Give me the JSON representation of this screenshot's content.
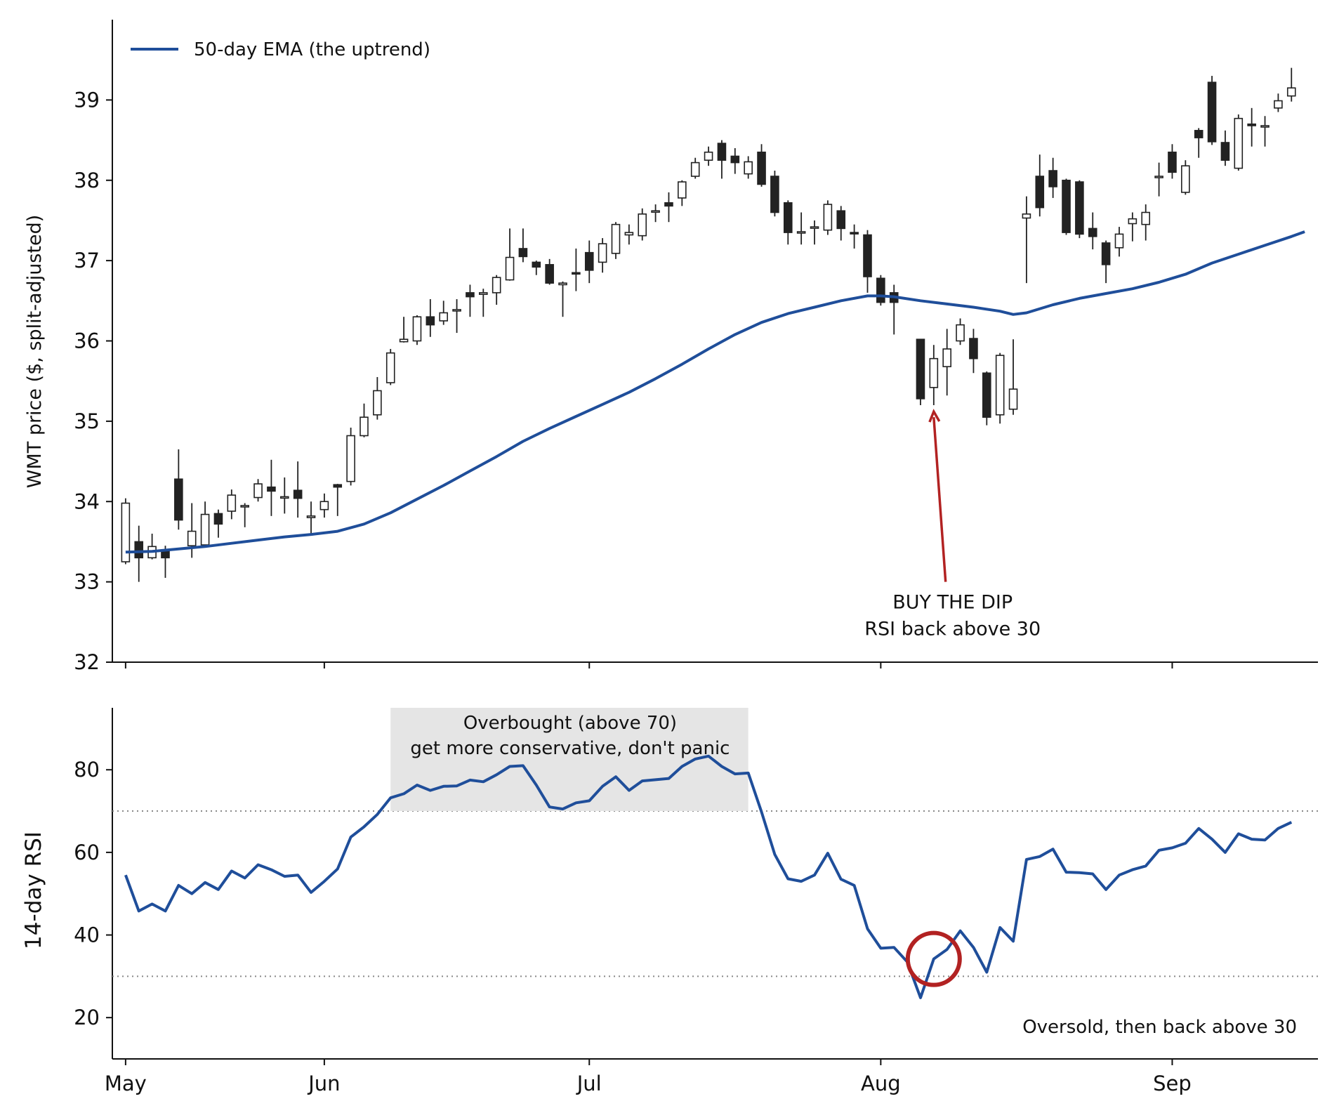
{
  "chart_data": [
    {
      "type": "candlestick",
      "ylabel": "WMT price ($, split-adjusted)",
      "ylim": [
        32,
        40
      ],
      "yticks": [
        32,
        33,
        34,
        35,
        36,
        37,
        38,
        39
      ],
      "xlim": [
        -1,
        90
      ],
      "xticks": [
        {
          "label": "May",
          "day": 0
        },
        {
          "label": "Jun",
          "day": 15
        },
        {
          "label": "Jul",
          "day": 35
        },
        {
          "label": "Aug",
          "day": 57
        },
        {
          "label": "Sep",
          "day": 79
        }
      ],
      "legend": {
        "position": "top-left",
        "entries": [
          "50-day EMA (the uptrend)"
        ]
      },
      "colors": {
        "up_fill": "#ffffff",
        "down_fill": "#222222",
        "edge": "#222222",
        "ema": "#1f4e9a",
        "annotation": "#b22222"
      },
      "candles": [
        [
          0,
          33.25,
          33.98,
          33.22,
          34.04
        ],
        [
          1,
          33.5,
          33.3,
          33.0,
          33.7
        ],
        [
          2,
          33.3,
          33.44,
          33.28,
          33.6
        ],
        [
          3,
          33.4,
          33.3,
          33.05,
          33.45
        ],
        [
          4,
          34.28,
          33.77,
          33.65,
          34.65
        ],
        [
          5,
          33.45,
          33.63,
          33.3,
          33.98
        ],
        [
          6,
          33.46,
          33.84,
          33.45,
          34.0
        ],
        [
          7,
          33.85,
          33.72,
          33.55,
          33.9
        ],
        [
          8,
          33.88,
          34.08,
          33.78,
          34.15
        ],
        [
          9,
          33.94,
          33.95,
          33.68,
          33.98
        ],
        [
          10,
          34.05,
          34.22,
          34.0,
          34.28
        ],
        [
          11,
          34.18,
          34.13,
          33.82,
          34.52
        ],
        [
          12,
          34.05,
          34.06,
          33.85,
          34.3
        ],
        [
          13,
          34.14,
          34.04,
          33.8,
          34.5
        ],
        [
          14,
          33.8,
          33.82,
          33.58,
          34.0
        ],
        [
          15,
          33.9,
          34.0,
          33.8,
          34.1
        ],
        [
          16,
          34.21,
          34.18,
          33.82,
          34.22
        ],
        [
          17,
          34.25,
          34.82,
          34.2,
          34.92
        ],
        [
          18,
          34.82,
          35.05,
          34.8,
          35.22
        ],
        [
          19,
          35.08,
          35.38,
          35.02,
          35.55
        ],
        [
          20,
          35.48,
          35.85,
          35.45,
          35.9
        ],
        [
          21,
          35.99,
          36.02,
          35.98,
          36.3
        ],
        [
          22,
          36.0,
          36.3,
          35.95,
          36.32
        ],
        [
          23,
          36.3,
          36.2,
          36.05,
          36.52
        ],
        [
          24,
          36.25,
          36.35,
          36.2,
          36.5
        ],
        [
          25,
          36.38,
          36.39,
          36.1,
          36.52
        ],
        [
          26,
          36.6,
          36.55,
          36.3,
          36.7
        ],
        [
          27,
          36.58,
          36.6,
          36.3,
          36.65
        ],
        [
          28,
          36.6,
          36.79,
          36.45,
          36.82
        ],
        [
          29,
          36.76,
          37.04,
          36.75,
          37.4
        ],
        [
          30,
          37.15,
          37.05,
          36.98,
          37.4
        ],
        [
          31,
          36.98,
          36.92,
          36.82,
          37.0
        ],
        [
          32,
          36.95,
          36.72,
          36.7,
          37.02
        ],
        [
          33,
          36.7,
          36.72,
          36.3,
          36.74
        ],
        [
          34,
          36.85,
          36.84,
          36.62,
          37.15
        ],
        [
          35,
          37.1,
          36.88,
          36.72,
          37.25
        ],
        [
          36,
          36.98,
          37.21,
          36.85,
          37.28
        ],
        [
          37,
          37.09,
          37.45,
          37.02,
          37.48
        ],
        [
          38,
          37.32,
          37.35,
          37.2,
          37.45
        ],
        [
          39,
          37.31,
          37.58,
          37.25,
          37.65
        ],
        [
          40,
          37.62,
          37.62,
          37.48,
          37.7
        ],
        [
          41,
          37.72,
          37.68,
          37.48,
          37.85
        ],
        [
          42,
          37.78,
          37.98,
          37.68,
          38.0
        ],
        [
          43,
          38.05,
          38.22,
          38.02,
          38.28
        ],
        [
          44,
          38.25,
          38.35,
          38.18,
          38.42
        ],
        [
          45,
          38.46,
          38.25,
          38.02,
          38.5
        ],
        [
          46,
          38.3,
          38.22,
          38.08,
          38.4
        ],
        [
          47,
          38.08,
          38.23,
          38.02,
          38.3
        ],
        [
          48,
          38.35,
          37.95,
          37.92,
          38.45
        ],
        [
          49,
          38.05,
          37.6,
          37.55,
          38.12
        ],
        [
          50,
          37.72,
          37.35,
          37.2,
          37.75
        ],
        [
          51,
          37.35,
          37.36,
          37.2,
          37.6
        ],
        [
          52,
          37.42,
          37.42,
          37.2,
          37.5
        ],
        [
          53,
          37.38,
          37.7,
          37.32,
          37.75
        ],
        [
          54,
          37.62,
          37.4,
          37.25,
          37.68
        ],
        [
          55,
          37.35,
          37.34,
          37.15,
          37.45
        ],
        [
          56,
          37.32,
          36.8,
          36.6,
          37.38
        ],
        [
          57,
          36.78,
          36.48,
          36.44,
          36.82
        ],
        [
          58,
          36.6,
          36.48,
          36.08,
          36.7
        ],
        [
          60,
          36.02,
          35.28,
          35.2,
          36.02
        ],
        [
          61,
          35.42,
          35.78,
          35.2,
          35.95
        ],
        [
          62,
          35.68,
          35.9,
          35.32,
          36.15
        ],
        [
          63,
          36.0,
          36.2,
          35.95,
          36.28
        ],
        [
          64,
          36.03,
          35.78,
          35.6,
          36.15
        ],
        [
          65,
          35.6,
          35.05,
          34.95,
          35.62
        ],
        [
          66,
          35.08,
          35.82,
          34.97,
          35.85
        ],
        [
          67,
          35.15,
          35.4,
          35.08,
          36.02
        ],
        [
          68,
          37.53,
          37.58,
          36.72,
          37.8
        ],
        [
          69,
          38.05,
          37.66,
          37.55,
          38.32
        ],
        [
          70,
          38.12,
          37.92,
          37.78,
          38.28
        ],
        [
          71,
          38.0,
          37.35,
          37.32,
          38.02
        ],
        [
          72,
          37.98,
          37.33,
          37.28,
          38.0
        ],
        [
          73,
          37.4,
          37.3,
          37.14,
          37.6
        ],
        [
          74,
          37.22,
          36.95,
          36.72,
          37.25
        ],
        [
          75,
          37.16,
          37.33,
          37.05,
          37.42
        ],
        [
          76,
          37.46,
          37.52,
          37.24,
          37.6
        ],
        [
          77,
          37.45,
          37.6,
          37.25,
          37.7
        ],
        [
          78,
          38.05,
          38.05,
          37.8,
          38.22
        ],
        [
          79,
          38.35,
          38.1,
          38.02,
          38.45
        ],
        [
          80,
          37.85,
          38.18,
          37.82,
          38.25
        ],
        [
          81,
          38.62,
          38.53,
          38.28,
          38.65
        ],
        [
          82,
          39.22,
          38.48,
          38.44,
          39.3
        ],
        [
          83,
          38.47,
          38.25,
          38.18,
          38.62
        ],
        [
          84,
          38.15,
          38.77,
          38.12,
          38.82
        ],
        [
          85,
          38.7,
          38.68,
          38.42,
          38.9
        ],
        [
          86,
          38.68,
          38.68,
          38.42,
          38.8
        ],
        [
          87,
          38.9,
          38.99,
          38.85,
          39.08
        ],
        [
          88,
          39.05,
          39.15,
          38.98,
          39.4
        ]
      ],
      "ema": [
        [
          0,
          33.37
        ],
        [
          2,
          33.38
        ],
        [
          4,
          33.41
        ],
        [
          6,
          33.44
        ],
        [
          8,
          33.48
        ],
        [
          10,
          33.52
        ],
        [
          12,
          33.56
        ],
        [
          14,
          33.59
        ],
        [
          16,
          33.63
        ],
        [
          18,
          33.72
        ],
        [
          20,
          33.86
        ],
        [
          22,
          34.03
        ],
        [
          24,
          34.2
        ],
        [
          26,
          34.38
        ],
        [
          28,
          34.56
        ],
        [
          30,
          34.75
        ],
        [
          32,
          34.91
        ],
        [
          34,
          35.06
        ],
        [
          36,
          35.21
        ],
        [
          38,
          35.36
        ],
        [
          40,
          35.53
        ],
        [
          42,
          35.71
        ],
        [
          44,
          35.9
        ],
        [
          46,
          36.08
        ],
        [
          48,
          36.23
        ],
        [
          50,
          36.34
        ],
        [
          52,
          36.42
        ],
        [
          54,
          36.5
        ],
        [
          56,
          36.56
        ],
        [
          57,
          36.56
        ],
        [
          58,
          36.55
        ],
        [
          60,
          36.5
        ],
        [
          62,
          36.46
        ],
        [
          64,
          36.42
        ],
        [
          66,
          36.37
        ],
        [
          67,
          36.33
        ],
        [
          68,
          36.35
        ],
        [
          70,
          36.45
        ],
        [
          72,
          36.53
        ],
        [
          74,
          36.59
        ],
        [
          76,
          36.65
        ],
        [
          78,
          36.73
        ],
        [
          80,
          36.83
        ],
        [
          82,
          36.97
        ],
        [
          84,
          37.08
        ],
        [
          86,
          37.19
        ],
        [
          88,
          37.3
        ],
        [
          89,
          37.36
        ]
      ],
      "annotation": {
        "lines": [
          "BUY THE DIP",
          "RSI back above 30"
        ],
        "xy": [
          61,
          35.12
        ],
        "xytext": [
          62,
          33.0
        ]
      }
    },
    {
      "type": "line",
      "ylabel": "14-day RSI",
      "ylim": [
        10,
        95
      ],
      "yticks": [
        20,
        40,
        60,
        80
      ],
      "reference_lines": [
        30,
        70
      ],
      "series": [
        {
          "values": [
            [
              0,
              54.5
            ],
            [
              1,
              45.8
            ],
            [
              2,
              47.5
            ],
            [
              3,
              45.8
            ],
            [
              4,
              52.0
            ],
            [
              5,
              50.0
            ],
            [
              6,
              52.7
            ],
            [
              7,
              51.0
            ],
            [
              8,
              55.5
            ],
            [
              9,
              53.8
            ],
            [
              10,
              57.0
            ],
            [
              11,
              55.8
            ],
            [
              12,
              54.2
            ],
            [
              13,
              54.5
            ],
            [
              14,
              50.3
            ],
            [
              15,
              53.0
            ],
            [
              16,
              56.0
            ],
            [
              17,
              63.7
            ],
            [
              18,
              66.2
            ],
            [
              19,
              69.2
            ],
            [
              20,
              73.2
            ],
            [
              21,
              74.2
            ],
            [
              22,
              76.3
            ],
            [
              23,
              75.0
            ],
            [
              24,
              76.0
            ],
            [
              25,
              76.1
            ],
            [
              26,
              77.5
            ],
            [
              27,
              77.1
            ],
            [
              28,
              78.8
            ],
            [
              29,
              80.8
            ],
            [
              30,
              81.0
            ],
            [
              31,
              76.3
            ],
            [
              32,
              71.0
            ],
            [
              33,
              70.5
            ],
            [
              34,
              72.0
            ],
            [
              35,
              72.5
            ],
            [
              36,
              76.0
            ],
            [
              37,
              78.3
            ],
            [
              38,
              75.0
            ],
            [
              39,
              77.3
            ],
            [
              40,
              77.6
            ],
            [
              41,
              77.9
            ],
            [
              42,
              80.8
            ],
            [
              43,
              82.6
            ],
            [
              44,
              83.3
            ],
            [
              45,
              80.8
            ],
            [
              46,
              79.0
            ],
            [
              47,
              79.2
            ],
            [
              48,
              69.8
            ],
            [
              49,
              59.5
            ],
            [
              50,
              53.6
            ],
            [
              51,
              53.0
            ],
            [
              52,
              54.5
            ],
            [
              53,
              59.8
            ],
            [
              54,
              53.5
            ],
            [
              55,
              52.0
            ],
            [
              56,
              41.5
            ],
            [
              57,
              36.8
            ],
            [
              58,
              37.0
            ],
            [
              59,
              33.5
            ],
            [
              60,
              24.8
            ],
            [
              61,
              34.2
            ],
            [
              62,
              36.5
            ],
            [
              63,
              41.0
            ],
            [
              64,
              37.0
            ],
            [
              65,
              31.0
            ],
            [
              66,
              41.8
            ],
            [
              67,
              38.5
            ],
            [
              68,
              58.3
            ],
            [
              69,
              59.0
            ],
            [
              70,
              60.8
            ],
            [
              71,
              55.2
            ],
            [
              72,
              55.1
            ],
            [
              73,
              54.8
            ],
            [
              74,
              51.0
            ],
            [
              75,
              54.5
            ],
            [
              76,
              55.8
            ],
            [
              77,
              56.7
            ],
            [
              78,
              60.5
            ],
            [
              79,
              61.1
            ],
            [
              80,
              62.2
            ],
            [
              81,
              65.8
            ],
            [
              82,
              63.2
            ],
            [
              83,
              60.0
            ],
            [
              84,
              64.5
            ],
            [
              85,
              63.2
            ],
            [
              86,
              63.0
            ],
            [
              87,
              65.8
            ],
            [
              88,
              67.3
            ]
          ]
        }
      ],
      "overbought_box": {
        "x0": 20,
        "x1": 47,
        "y0": 70,
        "y1": 95
      },
      "overbought_label": [
        "Overbought (above 70)",
        "get more conservative, don't panic"
      ],
      "oversold_label": "Oversold, then back above 30",
      "circle_marker": {
        "x": 61,
        "y": 34.2
      }
    }
  ]
}
